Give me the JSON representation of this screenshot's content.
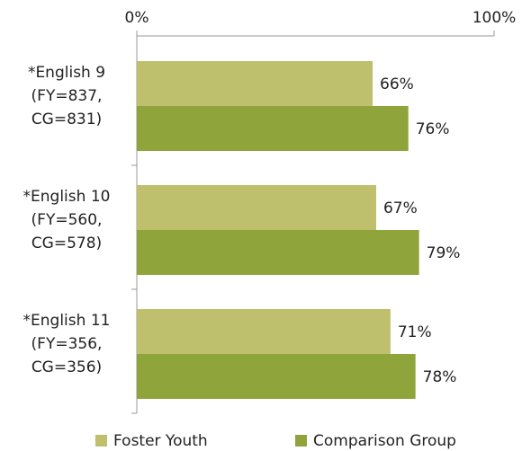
{
  "chart_data": {
    "type": "hbar",
    "categories": [
      "*English 9\n(FY=837,\nCG=831)",
      "*English 10\n(FY=560,\nCG=578)",
      "*English 11\n(FY=356,\nCG=356)"
    ],
    "series": [
      {
        "name": "Foster Youth",
        "color": "#bfc06e",
        "values": [
          66,
          67,
          71
        ],
        "value_labels": [
          "66%",
          "67%",
          "71%"
        ]
      },
      {
        "name": "Comparison Group",
        "color": "#8fa43a",
        "values": [
          76,
          79,
          78
        ],
        "value_labels": [
          "76%",
          "79%",
          "78%"
        ]
      }
    ],
    "xlim": [
      0,
      100
    ],
    "xticks": [
      {
        "value": 0,
        "label": "0%"
      },
      {
        "value": 100,
        "label": "100%"
      }
    ],
    "legend": "bottom"
  }
}
